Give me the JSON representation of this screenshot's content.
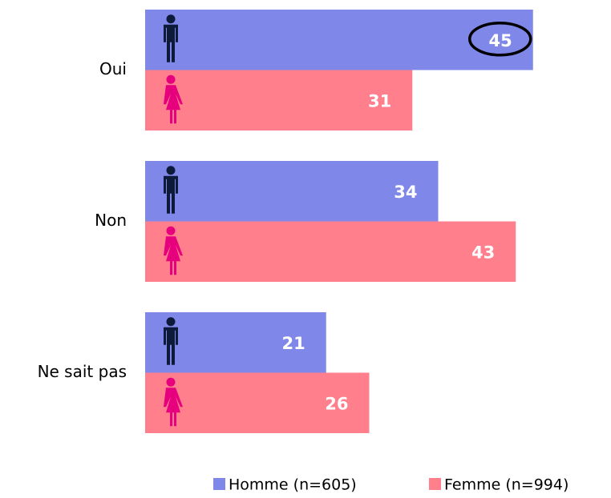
{
  "chart_data": {
    "type": "bar",
    "orientation": "horizontal",
    "categories": [
      "Oui",
      "Non",
      "Ne sait pas"
    ],
    "series": [
      {
        "name": "Homme (n=605)",
        "color": "#7f88e8",
        "values": [
          45,
          34,
          21
        ]
      },
      {
        "name": "Femme (n=994)",
        "color": "#ff7f8c",
        "values": [
          31,
          43,
          26
        ]
      }
    ],
    "legend": "bottom"
  }
}
